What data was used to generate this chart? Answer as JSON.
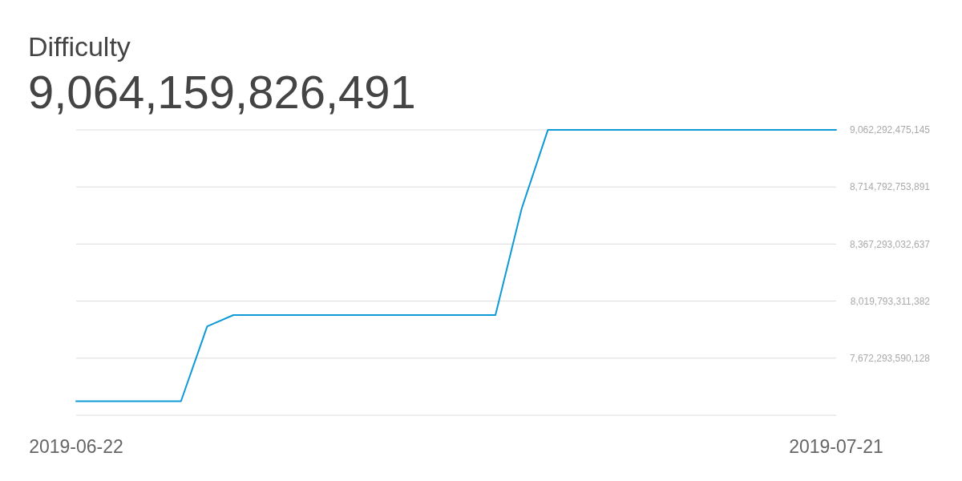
{
  "chart_data": {
    "type": "line",
    "title": "Difficulty",
    "subtitle": "9,064,159,826,491",
    "x": [
      "2019-06-22",
      "2019-06-23",
      "2019-06-24",
      "2019-06-25",
      "2019-06-26",
      "2019-06-27",
      "2019-06-28",
      "2019-06-29",
      "2019-06-30",
      "2019-07-01",
      "2019-07-02",
      "2019-07-03",
      "2019-07-04",
      "2019-07-05",
      "2019-07-06",
      "2019-07-07",
      "2019-07-08",
      "2019-07-09",
      "2019-07-10",
      "2019-07-11",
      "2019-07-12",
      "2019-07-13",
      "2019-07-14",
      "2019-07-15",
      "2019-07-16",
      "2019-07-17",
      "2019-07-18",
      "2019-07-19",
      "2019-07-20",
      "2019-07-21"
    ],
    "series": [
      {
        "color": "#0e9ad7",
        "values": [
          7410000000000,
          7410000000000,
          7410000000000,
          7410000000000,
          7410000000000,
          7866000000000,
          7935000000000,
          7935000000000,
          7935000000000,
          7935000000000,
          7935000000000,
          7935000000000,
          7935000000000,
          7935000000000,
          7935000000000,
          7935000000000,
          7935000000000,
          8583000000000,
          9062000000000,
          9062000000000,
          9062000000000,
          9062000000000,
          9062000000000,
          9062000000000,
          9062000000000,
          9062000000000,
          9062000000000,
          9062000000000,
          9062000000000,
          9062000000000
        ]
      }
    ],
    "xlim": [
      "2019-06-22",
      "2019-07-21"
    ],
    "xticks": [
      "2019-06-22",
      "2019-07-21"
    ],
    "ylim": [
      7324793868874,
      9062292475145
    ],
    "yticks": [
      {
        "value": 7672293590128,
        "label": "7,672,293,590,128"
      },
      {
        "value": 8019793311382,
        "label": "8,019,793,311,382"
      },
      {
        "value": 8367293032637,
        "label": "8,367,293,032,637"
      },
      {
        "value": 8714792753891,
        "label": "8,714,792,753,891"
      },
      {
        "value": 9062292475145,
        "label": "9,062,292,475,145"
      }
    ],
    "grid": "y"
  }
}
